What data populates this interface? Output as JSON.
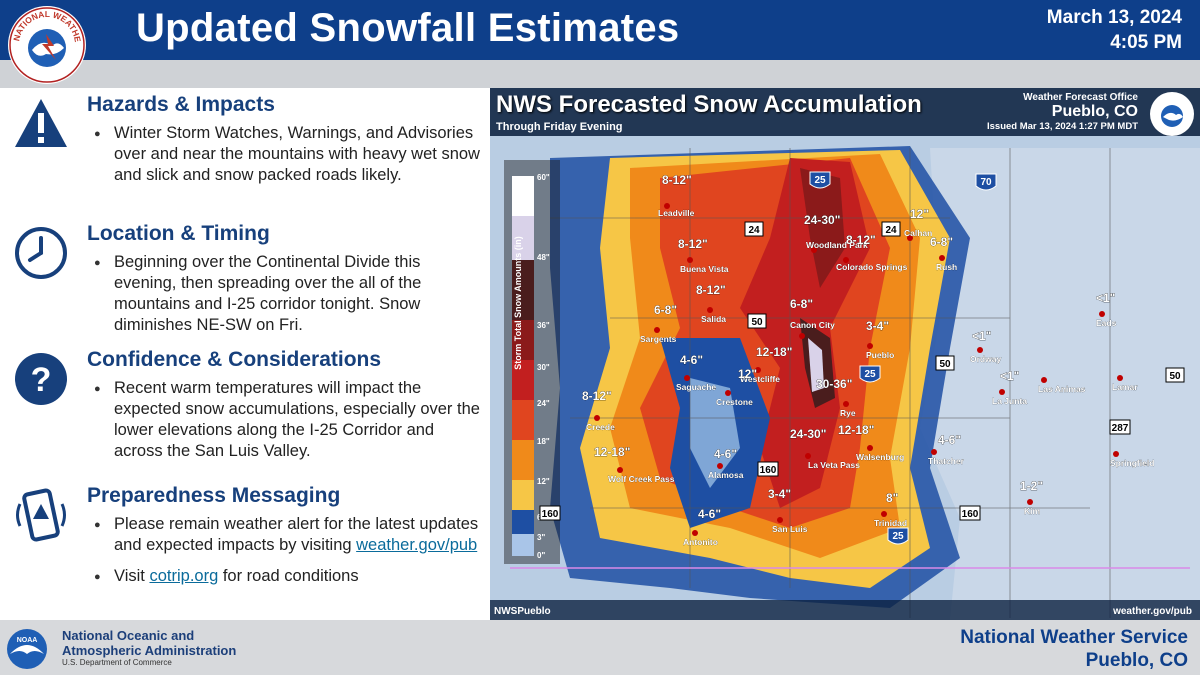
{
  "header": {
    "title": "Updated Snowfall Estimates",
    "date": "March 13, 2024",
    "time": "4:05 PM",
    "logo_text": "NATIONAL WEATHER SERVICE"
  },
  "sections": [
    {
      "title": "Hazards & Impacts",
      "icon": "warning-icon",
      "bullets": [
        "Winter Storm Watches, Warnings, and Advisories over and near the mountains with heavy wet snow and slick and snow packed roads likely."
      ]
    },
    {
      "title": "Location & Timing",
      "icon": "clock-icon",
      "bullets": [
        "Beginning over the Continental Divide this evening, then spreading over the all of the mountains and I-25 corridor tonight. Snow diminishes NE-SW on Fri."
      ]
    },
    {
      "title": "Confidence & Considerations",
      "icon": "question-icon",
      "bullets": [
        "Recent warm temperatures will impact the expected snow accumulations, especially over the lower elevations along the I-25 Corridor and across the San Luis Valley."
      ]
    },
    {
      "title": "Preparedness Messaging",
      "icon": "phone-alert-icon",
      "bullet1_text": "Please remain weather alert for the latest updates and expected impacts by visiting",
      "bullet1_link": "weather.gov/pub",
      "bullet2_pre": "Visit",
      "bullet2_link": "cotrip.org",
      "bullet2_post": "for road conditions"
    }
  ],
  "map": {
    "title": "NWS Forecasted Snow Accumulation",
    "subtitle": "Through Friday Evening",
    "office_label": "Weather Forecast Office",
    "office_name": "Pueblo, CO",
    "issued": "Issued Mar 13, 2024 1:27 PM MDT",
    "footer_left": "NWSPueblo",
    "footer_right": "weather.gov/pub",
    "legend_title": "Storm Total Snow Amounts (in)",
    "legend_ticks": [
      "60\"",
      "48\"",
      "36\"",
      "30\"",
      "24\"",
      "18\"",
      "12\"",
      "6\"",
      "3\"",
      "0\""
    ],
    "legend_colors": [
      "#ffffff",
      "#d9d2e9",
      "#4a1d1d",
      "#8b1a1a",
      "#c21f1f",
      "#e0451f",
      "#f08a1a",
      "#f6c646",
      "#1e4fa3",
      "#a9c5e8"
    ],
    "highways": [
      "25",
      "70",
      "24",
      "24",
      "50",
      "50",
      "50",
      "160",
      "160",
      "160",
      "287",
      "25",
      "25"
    ],
    "cities": [
      "Leadville",
      "Buena Vista",
      "Salida",
      "Sargents",
      "Saguache",
      "Crestone",
      "Creede",
      "Wolf Creek Pass",
      "Alamosa",
      "Antonito",
      "San Luis",
      "La Veta Pass",
      "Walsenburg",
      "Trinidad",
      "Westcliffe",
      "Canon City",
      "Pueblo",
      "Rye",
      "Woodland Park",
      "Colorado Springs",
      "Calhan",
      "Rush",
      "Eads",
      "Ordway",
      "La Junta",
      "Las Animas",
      "Lamar",
      "Thatcher",
      "Kim",
      "Springfield"
    ],
    "amounts": [
      "8-12\"",
      "24-30\"",
      "12\"",
      "8-12\"",
      "6-8\"",
      "8-12\"",
      "8-12\"",
      "6-8\"",
      "6-8\"",
      "3-4\"",
      "4-6\"",
      "12-18\"",
      "12\"",
      "30-36\"",
      "<1\"",
      "<1\"",
      "<1\"",
      "8-12\"",
      "12-18\"",
      "4-6\"",
      "24-30\"",
      "12-18\"",
      "4-6\"",
      "3-4\"",
      "4-6\"",
      "8\"",
      "1-2\""
    ]
  },
  "footer": {
    "noaa_line1": "National Oceanic and",
    "noaa_line2": "Atmospheric Administration",
    "noaa_dept": "U.S. Department of Commerce",
    "nws_line1": "National Weather Service",
    "nws_line2": "Pueblo, CO"
  }
}
